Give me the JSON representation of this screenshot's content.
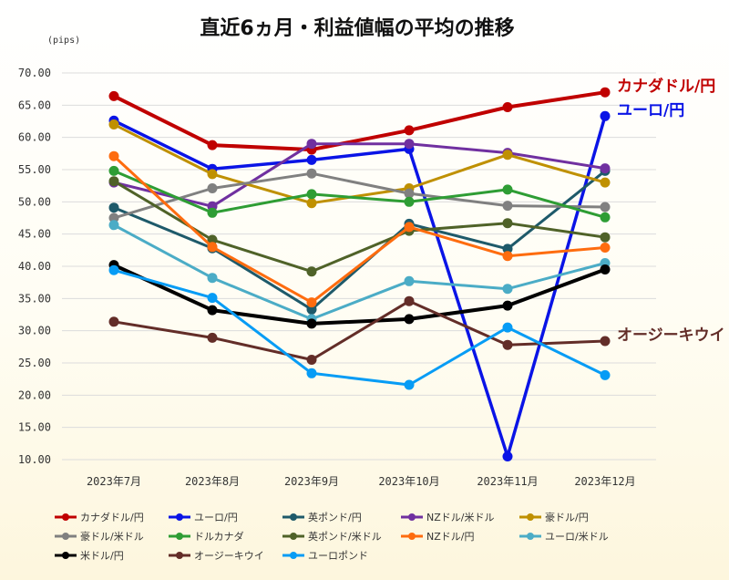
{
  "chart_data": {
    "type": "line",
    "title": "直近6ヵ月・利益値幅の平均の推移",
    "ylabel": "(pips)",
    "ylim": [
      10,
      70
    ],
    "yticks": [
      "10.00",
      "15.00",
      "20.00",
      "25.00",
      "30.00",
      "35.00",
      "40.00",
      "45.00",
      "50.00",
      "55.00",
      "60.00",
      "65.00",
      "70.00"
    ],
    "categories": [
      "2023年7月",
      "2023年8月",
      "2023年9月",
      "2023年10月",
      "2023年11月",
      "2023年12月"
    ],
    "series": [
      {
        "name": "カナダドル/円",
        "color": "#c00000",
        "width": 4,
        "values": [
          66.4,
          58.8,
          58.1,
          61.1,
          64.7,
          67.0
        ]
      },
      {
        "name": "ユーロ/円",
        "color": "#0a14e6",
        "width": 3.5,
        "values": [
          62.6,
          55.1,
          56.5,
          58.2,
          10.5,
          63.3
        ]
      },
      {
        "name": "英ポンド/円",
        "color": "#1e5a6a",
        "width": 3,
        "values": [
          49.1,
          42.8,
          33.3,
          46.6,
          42.7,
          54.8
        ]
      },
      {
        "name": "NZドル/米ドル",
        "color": "#7030a0",
        "width": 3,
        "values": [
          53.0,
          49.3,
          59.0,
          59.0,
          57.6,
          55.2
        ]
      },
      {
        "name": "豪ドル/円",
        "color": "#bf9000",
        "width": 3,
        "values": [
          62.0,
          54.3,
          49.8,
          52.1,
          57.3,
          53.0
        ]
      },
      {
        "name": "豪ドル/米ドル",
        "color": "#808080",
        "width": 3,
        "values": [
          47.5,
          52.1,
          54.4,
          51.3,
          49.4,
          49.2
        ]
      },
      {
        "name": "ドルカナダ",
        "color": "#2e9d34",
        "width": 3,
        "values": [
          54.8,
          48.3,
          51.2,
          50.0,
          51.9,
          47.6
        ]
      },
      {
        "name": "英ポンド/米ドル",
        "color": "#4f6228",
        "width": 3,
        "values": [
          53.2,
          44.1,
          39.2,
          45.5,
          46.7,
          44.5
        ]
      },
      {
        "name": "NZドル/円",
        "color": "#fe6c0f",
        "width": 3,
        "values": [
          57.1,
          43.0,
          34.4,
          46.1,
          41.6,
          42.9
        ]
      },
      {
        "name": "ユーロ/米ドル",
        "color": "#4bacc6",
        "width": 3,
        "values": [
          46.4,
          38.2,
          31.8,
          37.7,
          36.5,
          40.5
        ]
      },
      {
        "name": "米ドル/円",
        "color": "#000000",
        "width": 4,
        "values": [
          40.2,
          33.2,
          31.1,
          31.8,
          33.9,
          39.5
        ]
      },
      {
        "name": "オージーキウイ",
        "color": "#632d28",
        "width": 3,
        "values": [
          31.4,
          28.9,
          25.5,
          34.6,
          27.8,
          28.4
        ]
      },
      {
        "name": "ユーロポンド",
        "color": "#079cf5",
        "width": 3,
        "values": [
          39.4,
          35.1,
          23.4,
          21.6,
          30.5,
          23.1
        ]
      }
    ],
    "annotations": [
      {
        "text": "カナダドル/円",
        "series": 0
      },
      {
        "text": "ユーロ/円",
        "series": 1
      },
      {
        "text": "オージーキウイ",
        "series": 11
      }
    ],
    "legend_position": "bottom"
  }
}
